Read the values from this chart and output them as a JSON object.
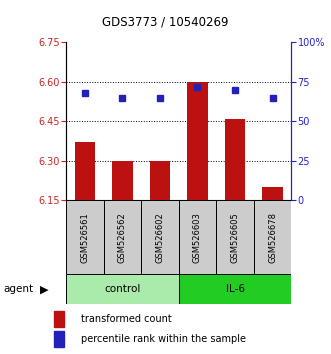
{
  "title": "GDS3773 / 10540269",
  "samples": [
    "GSM526561",
    "GSM526562",
    "GSM526602",
    "GSM526603",
    "GSM526605",
    "GSM526678"
  ],
  "red_values": [
    6.37,
    6.3,
    6.3,
    6.6,
    6.46,
    6.2
  ],
  "blue_values": [
    68,
    65,
    65,
    72,
    70,
    65
  ],
  "ylim_left": [
    6.15,
    6.75
  ],
  "ylim_right": [
    0,
    100
  ],
  "yticks_left": [
    6.15,
    6.3,
    6.45,
    6.6,
    6.75
  ],
  "yticks_right": [
    0,
    25,
    50,
    75,
    100
  ],
  "ytick_labels_right": [
    "0",
    "25",
    "50",
    "75",
    "100%"
  ],
  "hlines": [
    6.3,
    6.45,
    6.6
  ],
  "groups": [
    {
      "label": "control",
      "indices": [
        0,
        1,
        2
      ],
      "color": "#aaeaaa"
    },
    {
      "label": "IL-6",
      "indices": [
        3,
        4,
        5
      ],
      "color": "#22cc22"
    }
  ],
  "bar_color": "#bb1111",
  "dot_color": "#2222bb",
  "bar_width": 0.55,
  "legend_red": "transformed count",
  "legend_blue": "percentile rank within the sample",
  "agent_label": "agent",
  "sample_box_color": "#cccccc",
  "left_axis_color": "#cc2222",
  "right_axis_color": "#2222cc",
  "base_value": 6.15
}
